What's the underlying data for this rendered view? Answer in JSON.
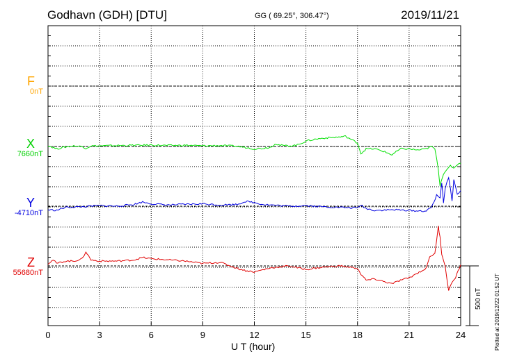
{
  "header": {
    "station": "Godhavn (GDH)  [DTU]",
    "coords": "GG ( 69.25°, 306.47°)",
    "date": "2019/11/21"
  },
  "footer": {
    "plotted": "Plotted at 2019/12/22 01:52 UT",
    "scale_label": "500 nT"
  },
  "chart_data": {
    "type": "line",
    "title": "Godhavn (GDH)  [DTU]",
    "xlabel": "U T (hour)",
    "ylabel": "",
    "xlim": [
      0,
      24
    ],
    "xticks": [
      0,
      3,
      6,
      9,
      12,
      15,
      18,
      21,
      24
    ],
    "grid": true,
    "scale_bar_nT": 500,
    "series": [
      {
        "name": "F",
        "baseline": "0nT",
        "color": "#FFA500",
        "x": [],
        "y": []
      },
      {
        "name": "X",
        "baseline": "7660nT",
        "color": "#00E000",
        "x": [
          0,
          0.5,
          1,
          1.5,
          2,
          2.2,
          2.5,
          3,
          4,
          5,
          5.5,
          6,
          7,
          8,
          9,
          10,
          11,
          12,
          12.5,
          13,
          13.2,
          13.5,
          14,
          14.5,
          15,
          15.5,
          16,
          16.5,
          17,
          17.3,
          17.5,
          18,
          18.2,
          18.5,
          19,
          19.5,
          20,
          20.5,
          21,
          21.5,
          22,
          22.3,
          22.5,
          22.7,
          22.8,
          22.9,
          23,
          23.2,
          23.4,
          23.6,
          23.8,
          24
        ],
        "y": [
          8,
          -20,
          -5,
          5,
          0,
          -15,
          5,
          5,
          8,
          10,
          10,
          12,
          8,
          10,
          5,
          8,
          2,
          -20,
          -15,
          -5,
          25,
          10,
          5,
          12,
          45,
          60,
          70,
          75,
          80,
          85,
          70,
          30,
          -60,
          -20,
          -20,
          -40,
          -70,
          -20,
          -20,
          -30,
          -20,
          0,
          -20,
          -190,
          -330,
          -270,
          -230,
          -200,
          -160,
          -180,
          -150,
          -140
        ]
      },
      {
        "name": "Y",
        "baseline": "-4710nT",
        "color": "#0000E0",
        "x": [
          0,
          0.5,
          1,
          2,
          3,
          4,
          5,
          5.5,
          6,
          7,
          8,
          9,
          10,
          11,
          11.5,
          12,
          12.5,
          13,
          14,
          15,
          16,
          17,
          18,
          18.2,
          18.5,
          19,
          20,
          21,
          21.5,
          22,
          22.3,
          22.6,
          22.8,
          22.9,
          23,
          23.1,
          23.3,
          23.5,
          23.6,
          23.8,
          24
        ],
        "y": [
          -30,
          -35,
          -10,
          -5,
          5,
          0,
          15,
          35,
          20,
          10,
          15,
          20,
          10,
          15,
          40,
          30,
          15,
          10,
          0,
          5,
          -5,
          -10,
          -15,
          10,
          -20,
          -35,
          -30,
          -35,
          -40,
          -40,
          -10,
          90,
          70,
          200,
          30,
          150,
          240,
          50,
          220,
          100,
          130
        ]
      },
      {
        "name": "Z",
        "baseline": "55680nT",
        "color": "#E00000",
        "x": [
          0,
          0.3,
          0.5,
          1,
          1.5,
          2,
          2.2,
          2.5,
          3,
          4,
          5,
          5.5,
          6,
          7,
          8,
          9,
          10,
          11,
          11.5,
          12,
          13,
          14,
          15,
          16,
          17,
          17.5,
          18,
          18.2,
          18.5,
          19,
          20,
          20.5,
          21,
          21.5,
          22,
          22.2,
          22.5,
          22.7,
          22.8,
          22.9,
          23,
          23.1,
          23.3,
          23.5,
          23.7,
          24
        ],
        "y": [
          20,
          50,
          20,
          40,
          40,
          60,
          120,
          50,
          40,
          40,
          50,
          70,
          60,
          50,
          40,
          20,
          30,
          -20,
          -40,
          -50,
          -15,
          0,
          -30,
          -10,
          0,
          -10,
          -20,
          -70,
          -120,
          -110,
          -150,
          -120,
          -100,
          -60,
          -20,
          80,
          100,
          330,
          240,
          100,
          50,
          -10,
          -200,
          -140,
          -100,
          10
        ]
      }
    ]
  }
}
